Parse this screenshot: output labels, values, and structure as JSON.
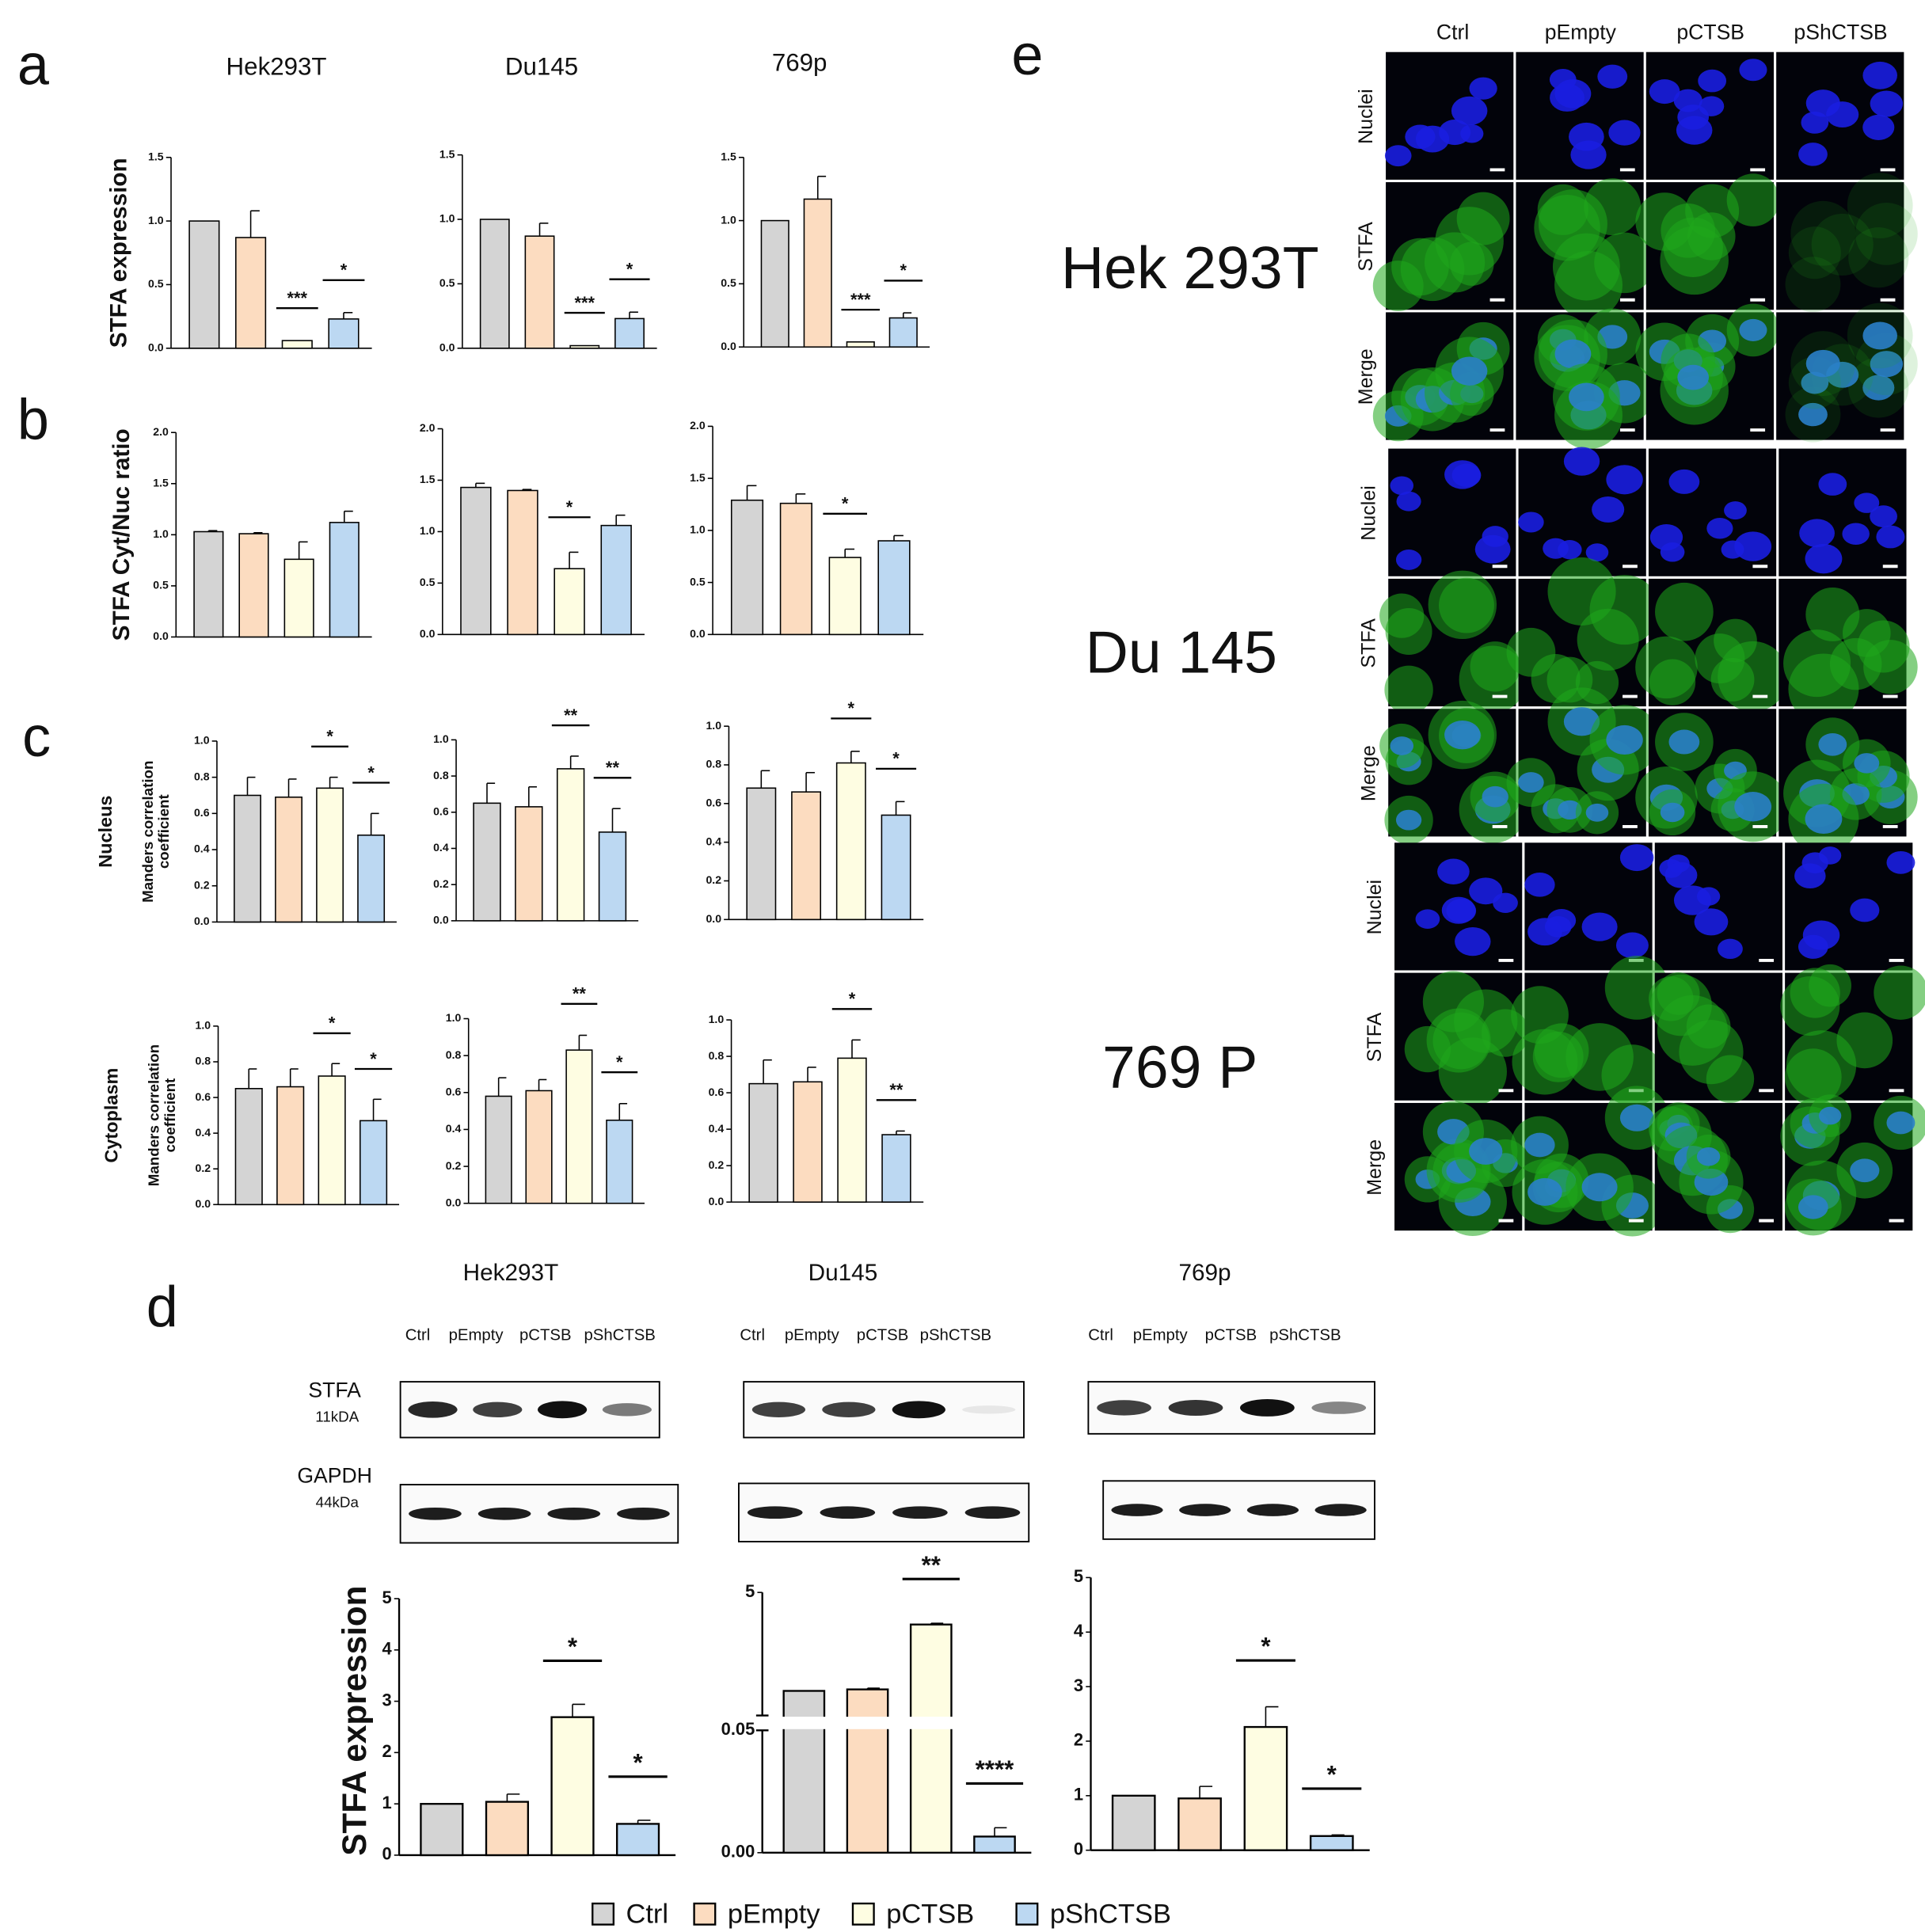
{
  "panel_labels": [
    "a",
    "b",
    "c",
    "d",
    "e"
  ],
  "chart_data": [
    {
      "type": "bar",
      "title": "Hek293T",
      "ylabel": "STFA expression",
      "values": [
        1.0,
        0.87,
        0.06,
        0.23
      ],
      "errors": [
        null,
        0.21,
        null,
        0.05
      ],
      "significance": [
        null,
        null,
        "***",
        "*"
      ],
      "ylim": [
        0,
        1.5
      ],
      "yticks": [
        {
          "value": 0,
          "label": "0.0"
        },
        {
          "value": 0.5,
          "label": "0.5"
        },
        {
          "value": 1,
          "label": "1.0"
        },
        {
          "value": 1.5,
          "label": "1.5"
        }
      ]
    },
    {
      "type": "bar",
      "title": "Du145",
      "values": [
        1.0,
        0.87,
        0.02,
        0.23
      ],
      "errors": [
        null,
        0.1,
        null,
        0.05
      ],
      "significance": [
        null,
        null,
        "***",
        "*"
      ],
      "ylim": [
        0,
        1.5
      ],
      "yticks": [
        {
          "value": 0,
          "label": "0.0"
        },
        {
          "value": 0.5,
          "label": "0.5"
        },
        {
          "value": 1,
          "label": "1.0"
        },
        {
          "value": 1.5,
          "label": "1.5"
        }
      ]
    },
    {
      "type": "bar",
      "title": "769p",
      "values": [
        1.0,
        1.17,
        0.04,
        0.23
      ],
      "errors": [
        null,
        0.18,
        null,
        0.04
      ],
      "significance": [
        null,
        null,
        "***",
        "*"
      ],
      "ylim": [
        0,
        1.5
      ],
      "yticks": [
        {
          "value": 0,
          "label": "0.0"
        },
        {
          "value": 0.5,
          "label": "0.5"
        },
        {
          "value": 1,
          "label": "1.0"
        },
        {
          "value": 1.5,
          "label": "1.5"
        }
      ]
    },
    {
      "type": "bar",
      "ylabel": "STFA Cyt/Nuc ratio",
      "values": [
        1.03,
        1.01,
        0.76,
        1.12
      ],
      "errors": [
        0.01,
        0.01,
        0.17,
        0.11
      ],
      "significance": [
        null,
        null,
        null,
        null
      ],
      "ylim": [
        0,
        2
      ],
      "yticks": [
        {
          "value": 0,
          "label": "0.0"
        },
        {
          "value": 0.5,
          "label": "0.5"
        },
        {
          "value": 1,
          "label": "1.0"
        },
        {
          "value": 1.5,
          "label": "1.5"
        },
        {
          "value": 2,
          "label": "2.0"
        }
      ]
    },
    {
      "type": "bar",
      "values": [
        1.43,
        1.4,
        0.64,
        1.06
      ],
      "errors": [
        0.04,
        0.01,
        0.16,
        0.1
      ],
      "significance": [
        null,
        null,
        "*",
        null
      ],
      "ylim": [
        0,
        2
      ],
      "yticks": [
        {
          "value": 0,
          "label": "0.0"
        },
        {
          "value": 0.5,
          "label": "0.5"
        },
        {
          "value": 1,
          "label": "1.0"
        },
        {
          "value": 1.5,
          "label": "1.5"
        },
        {
          "value": 2,
          "label": "2.0"
        }
      ]
    },
    {
      "type": "bar",
      "values": [
        1.29,
        1.26,
        0.74,
        0.9
      ],
      "errors": [
        0.14,
        0.09,
        0.08,
        0.05
      ],
      "significance": [
        null,
        null,
        "*",
        null
      ],
      "ylim": [
        0,
        2
      ],
      "yticks": [
        {
          "value": 0,
          "label": "0.0"
        },
        {
          "value": 0.5,
          "label": "0.5"
        },
        {
          "value": 1,
          "label": "1.0"
        },
        {
          "value": 1.5,
          "label": "1.5"
        },
        {
          "value": 2,
          "label": "2.0"
        }
      ]
    },
    {
      "type": "bar",
      "group_label": "Nucleus",
      "ylabel": [
        "Manders correlation",
        "coefficient"
      ],
      "values": [
        0.7,
        0.69,
        0.74,
        0.48
      ],
      "errors": [
        0.1,
        0.1,
        0.06,
        0.12
      ],
      "significance": [
        null,
        null,
        "*",
        "*"
      ],
      "ylim": [
        0,
        1
      ],
      "yticks": [
        {
          "value": 0,
          "label": "0.0"
        },
        {
          "value": 0.2,
          "label": "0.2"
        },
        {
          "value": 0.4,
          "label": "0.4"
        },
        {
          "value": 0.6,
          "label": "0.6"
        },
        {
          "value": 0.8,
          "label": "0.8"
        },
        {
          "value": 1,
          "label": "1.0"
        }
      ]
    },
    {
      "type": "bar",
      "values": [
        0.65,
        0.63,
        0.84,
        0.49
      ],
      "errors": [
        0.11,
        0.11,
        0.07,
        0.13
      ],
      "significance": [
        null,
        null,
        "**",
        "**"
      ],
      "ylim": [
        0,
        1
      ],
      "yticks": [
        {
          "value": 0,
          "label": "0.0"
        },
        {
          "value": 0.2,
          "label": "0.2"
        },
        {
          "value": 0.4,
          "label": "0.4"
        },
        {
          "value": 0.6,
          "label": "0.6"
        },
        {
          "value": 0.8,
          "label": "0.8"
        },
        {
          "value": 1,
          "label": "1.0"
        }
      ]
    },
    {
      "type": "bar",
      "values": [
        0.68,
        0.66,
        0.81,
        0.54
      ],
      "errors": [
        0.09,
        0.1,
        0.06,
        0.07
      ],
      "significance": [
        null,
        null,
        "*",
        "*"
      ],
      "ylim": [
        0,
        1
      ],
      "yticks": [
        {
          "value": 0,
          "label": "0.0"
        },
        {
          "value": 0.2,
          "label": "0.2"
        },
        {
          "value": 0.4,
          "label": "0.4"
        },
        {
          "value": 0.6,
          "label": "0.6"
        },
        {
          "value": 0.8,
          "label": "0.8"
        },
        {
          "value": 1,
          "label": "1.0"
        }
      ]
    },
    {
      "type": "bar",
      "group_label": "Cytoplasm",
      "ylabel": [
        "Manders correlation",
        "coefficient"
      ],
      "values": [
        0.65,
        0.66,
        0.72,
        0.47
      ],
      "errors": [
        0.11,
        0.1,
        0.07,
        0.12
      ],
      "significance": [
        null,
        null,
        "*",
        "*"
      ],
      "ylim": [
        0,
        1
      ],
      "yticks": [
        {
          "value": 0,
          "label": "0.0"
        },
        {
          "value": 0.2,
          "label": "0.2"
        },
        {
          "value": 0.4,
          "label": "0.4"
        },
        {
          "value": 0.6,
          "label": "0.6"
        },
        {
          "value": 0.8,
          "label": "0.8"
        },
        {
          "value": 1,
          "label": "1.0"
        }
      ]
    },
    {
      "type": "bar",
      "values": [
        0.58,
        0.61,
        0.83,
        0.45
      ],
      "errors": [
        0.1,
        0.06,
        0.08,
        0.09
      ],
      "significance": [
        null,
        null,
        "**",
        "*"
      ],
      "ylim": [
        0,
        1
      ],
      "yticks": [
        {
          "value": 0,
          "label": "0.0"
        },
        {
          "value": 0.2,
          "label": "0.2"
        },
        {
          "value": 0.4,
          "label": "0.4"
        },
        {
          "value": 0.6,
          "label": "0.6"
        },
        {
          "value": 0.8,
          "label": "0.8"
        },
        {
          "value": 1,
          "label": "1.0"
        }
      ]
    },
    {
      "type": "bar",
      "values": [
        0.65,
        0.66,
        0.79,
        0.37
      ],
      "errors": [
        0.13,
        0.08,
        0.1,
        0.02
      ],
      "significance": [
        null,
        null,
        "*",
        "**"
      ],
      "ylim": [
        0,
        1
      ],
      "yticks": [
        {
          "value": 0,
          "label": "0.0"
        },
        {
          "value": 0.2,
          "label": "0.2"
        },
        {
          "value": 0.4,
          "label": "0.4"
        },
        {
          "value": 0.6,
          "label": "0.6"
        },
        {
          "value": 0.8,
          "label": "0.8"
        },
        {
          "value": 1,
          "label": "1.0"
        }
      ]
    },
    {
      "type": "bar",
      "ylabel": "STFA expression",
      "values": [
        1.0,
        1.04,
        2.69,
        0.61
      ],
      "errors": [
        null,
        0.15,
        0.25,
        0.07
      ],
      "significance": [
        null,
        null,
        "*",
        "*"
      ],
      "ylim": [
        0,
        5
      ],
      "yticks": [
        0,
        1,
        2,
        3,
        4,
        5
      ]
    },
    {
      "type": "bar",
      "values": [
        1.04,
        1.1,
        3.71,
        0.0066
      ],
      "errors": [
        null,
        0.05,
        0.05,
        0.0036
      ],
      "significance": [
        null,
        null,
        "**",
        "****"
      ],
      "ylim": [
        0,
        5
      ],
      "ybreak": 0.05,
      "yticks": [
        {
          "value": 0,
          "label": "0.00"
        },
        {
          "value": 0.05,
          "label": "0.05"
        },
        5
      ]
    },
    {
      "type": "bar",
      "values": [
        1.0,
        0.95,
        2.26,
        0.26
      ],
      "errors": [
        null,
        0.22,
        0.37,
        0.02
      ],
      "significance": [
        null,
        null,
        "*",
        "*"
      ],
      "ylim": [
        0,
        5
      ],
      "yticks": [
        0,
        1,
        2,
        3,
        4,
        5
      ]
    }
  ],
  "legend": {
    "items": [
      {
        "name": "Ctrl",
        "color": "#d4d4d4"
      },
      {
        "name": "pEmpty",
        "color": "#fcdcc0"
      },
      {
        "name": "pCTSB",
        "color": "#fefde2"
      },
      {
        "name": "pShCTSB",
        "color": "#bcd8f2"
      }
    ]
  },
  "blots": {
    "cell_lines": [
      "Hek293T",
      "Du145",
      "769p"
    ],
    "lanes": [
      "Ctrl",
      "pEmpty",
      "pCTSB",
      "pShCTSB"
    ],
    "rows": [
      {
        "name": "STFA",
        "size": "11kDA"
      },
      {
        "name": "GAPDH",
        "size": "44kDa"
      }
    ]
  },
  "micrographs": {
    "columns": [
      "Ctrl",
      "pEmpty",
      "pCTSB",
      "pShCTSB"
    ],
    "channels": [
      "Nuclei",
      "STFA",
      "Merge"
    ],
    "cell_lines": [
      "Hek 293T",
      "Du 145",
      "769 P"
    ]
  }
}
